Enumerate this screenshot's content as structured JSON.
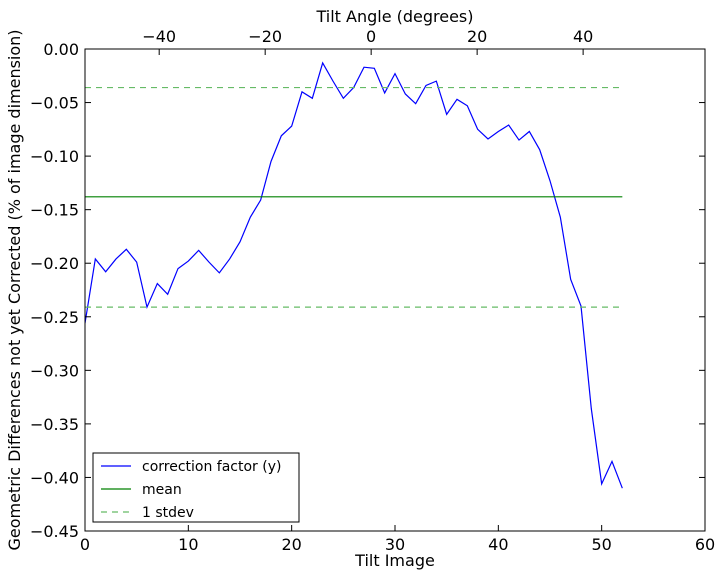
{
  "chart_data": {
    "type": "line",
    "title": "",
    "xlabel": "Tilt Image",
    "ylabel": "Geometric Differences not yet Corrected (% of image dimension)",
    "top_xlabel": "Tilt Angle (degrees)",
    "xlim": [
      0,
      60
    ],
    "ylim": [
      -0.45,
      0.0
    ],
    "top_xlim": [
      -54,
      63
    ],
    "x_ticks": [
      0,
      10,
      20,
      30,
      40,
      50,
      60
    ],
    "y_ticks": [
      0.0,
      -0.05,
      -0.1,
      -0.15,
      -0.2,
      -0.25,
      -0.3,
      -0.35,
      -0.4,
      -0.45
    ],
    "y_tick_labels": [
      "0.00",
      "−0.05",
      "−0.10",
      "−0.15",
      "−0.20",
      "−0.25",
      "−0.30",
      "−0.35",
      "−0.40",
      "−0.45"
    ],
    "top_x_ticks": [
      -40,
      -20,
      0,
      20,
      40
    ],
    "top_x_tick_labels": [
      "−40",
      "−20",
      "0",
      "20",
      "40"
    ],
    "grid": false,
    "legend_position": "lower-left",
    "series": [
      {
        "name": "correction factor (y)",
        "color": "#0000ff",
        "style": "solid",
        "x": [
          0,
          1,
          2,
          3,
          4,
          5,
          6,
          7,
          8,
          9,
          10,
          11,
          12,
          13,
          14,
          15,
          16,
          17,
          18,
          19,
          20,
          21,
          22,
          23,
          24,
          25,
          26,
          27,
          28,
          29,
          30,
          31,
          32,
          33,
          34,
          35,
          36,
          37,
          38,
          39,
          40,
          41,
          42,
          43,
          44,
          45,
          46,
          47,
          48,
          49,
          50,
          51,
          52
        ],
        "y": [
          -0.256,
          -0.196,
          -0.208,
          -0.196,
          -0.187,
          -0.199,
          -0.241,
          -0.219,
          -0.229,
          -0.205,
          -0.198,
          -0.188,
          -0.199,
          -0.209,
          -0.196,
          -0.18,
          -0.157,
          -0.141,
          -0.105,
          -0.081,
          -0.072,
          -0.04,
          -0.046,
          -0.013,
          -0.03,
          -0.046,
          -0.036,
          -0.017,
          -0.018,
          -0.041,
          -0.023,
          -0.042,
          -0.051,
          -0.034,
          -0.03,
          -0.061,
          -0.047,
          -0.053,
          -0.075,
          -0.084,
          -0.077,
          -0.071,
          -0.085,
          -0.077,
          -0.094,
          -0.123,
          -0.157,
          -0.215,
          -0.24,
          -0.336,
          -0.406,
          -0.385,
          -0.41
        ]
      },
      {
        "name": "mean",
        "color": "#008000",
        "style": "solid",
        "x": [
          0,
          52
        ],
        "y": [
          -0.138,
          -0.138
        ]
      },
      {
        "name": "1 stdev",
        "color": "#66bb66",
        "style": "dashed",
        "x": [
          0,
          52
        ],
        "y": [
          -0.036,
          -0.036
        ],
        "y2": [
          -0.241,
          -0.241
        ]
      }
    ]
  }
}
